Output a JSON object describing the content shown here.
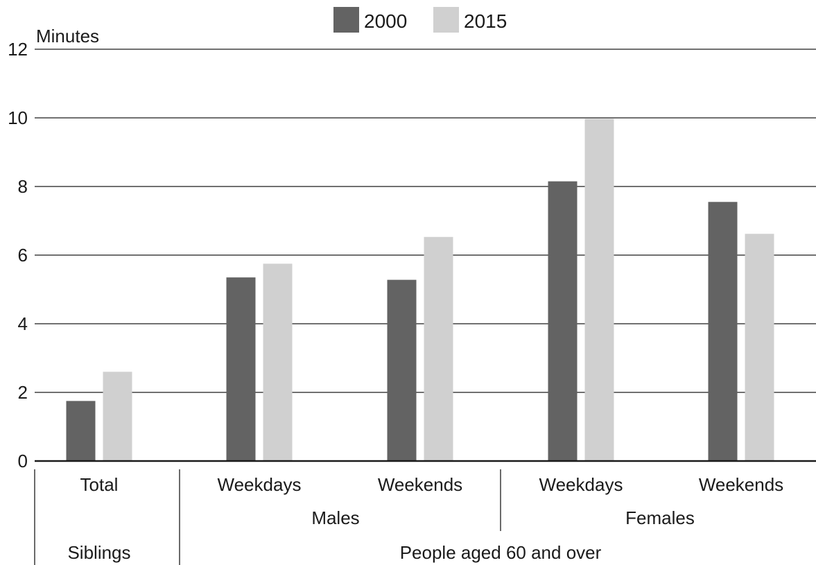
{
  "chart_data": {
    "type": "bar",
    "ylabel": "Minutes",
    "ylim": [
      0,
      12
    ],
    "yticks": [
      "0",
      "2",
      "4",
      "6",
      "8",
      "10",
      "12"
    ],
    "grid": true,
    "legend_position": "top-center",
    "categories": [
      "Total",
      "Weekdays",
      "Weekends",
      "Weekdays",
      "Weekends"
    ],
    "groups": [
      {
        "label": "Males"
      },
      {
        "label": "Females"
      }
    ],
    "supergroups": [
      {
        "label": "Siblings"
      },
      {
        "label": "People aged 60 and over"
      }
    ],
    "series": [
      {
        "name": "2000",
        "color": "#636363",
        "values": [
          1.75,
          5.35,
          5.28,
          8.15,
          7.55
        ]
      },
      {
        "name": "2015",
        "color": "#d0d0d0",
        "values": [
          2.6,
          5.75,
          6.53,
          9.97,
          6.62
        ]
      }
    ]
  }
}
